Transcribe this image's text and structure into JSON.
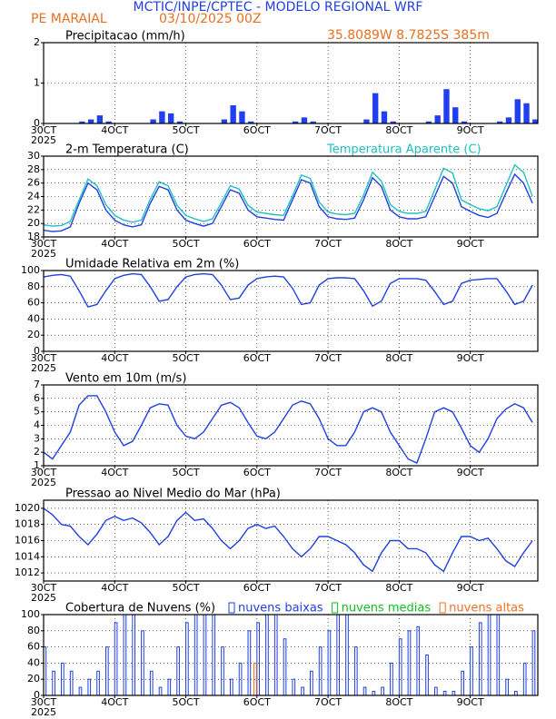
{
  "header": {
    "title": "MCTIC/INPE/CPTEC - MODELO REGIONAL WRF",
    "location": "PE MARAIAL",
    "date": "03/10/2025 00Z",
    "coords": "35.8089W 8.7825S 385m"
  },
  "time_axis": {
    "xlim": [
      3,
      9.95
    ],
    "year": "2025",
    "xticks": [
      {
        "value": 3,
        "label": "30CT"
      },
      {
        "value": 4,
        "label": "4OCT"
      },
      {
        "value": 5,
        "label": "5OCT"
      },
      {
        "value": 6,
        "label": "6OCT"
      },
      {
        "value": 7,
        "label": "7OCT"
      },
      {
        "value": 8,
        "label": "8OCT"
      },
      {
        "value": 9,
        "label": "9OCT"
      }
    ],
    "x": [
      3,
      3.125,
      3.25,
      3.375,
      3.5,
      3.625,
      3.75,
      3.875,
      4,
      4.125,
      4.25,
      4.375,
      4.5,
      4.625,
      4.75,
      4.875,
      5,
      5.125,
      5.25,
      5.375,
      5.5,
      5.625,
      5.75,
      5.875,
      6,
      6.125,
      6.25,
      6.375,
      6.5,
      6.625,
      6.75,
      6.875,
      7,
      7.125,
      7.25,
      7.375,
      7.5,
      7.625,
      7.75,
      7.875,
      8,
      8.125,
      8.25,
      8.375,
      8.5,
      8.625,
      8.75,
      8.875,
      9,
      9.125,
      9.25,
      9.375,
      9.5,
      9.625,
      9.75,
      9.875
    ]
  },
  "chart_data": [
    {
      "type": "bar",
      "title": "Precipitacao (mm/h)",
      "color": "#1f3ff0",
      "ylim": [
        0,
        2
      ],
      "yticks": [
        0,
        1,
        2
      ],
      "grid": true,
      "values": [
        0,
        0,
        0,
        0,
        0.05,
        0.1,
        0.2,
        0.05,
        0,
        0,
        0,
        0,
        0.1,
        0.3,
        0.25,
        0.05,
        0,
        0,
        0,
        0,
        0.1,
        0.45,
        0.3,
        0.05,
        0,
        0,
        0,
        0,
        0.05,
        0.15,
        0.05,
        0,
        0,
        0,
        0,
        0,
        0.1,
        0.75,
        0.3,
        0.05,
        0,
        0,
        0,
        0.05,
        0.2,
        0.85,
        0.4,
        0.05,
        0,
        0,
        0,
        0.05,
        0.15,
        0.6,
        0.5,
        0.1
      ]
    },
    {
      "type": "line",
      "ylim": [
        18,
        30
      ],
      "yticks": [
        18,
        20,
        22,
        24,
        26,
        28,
        30
      ],
      "grid": true,
      "series": [
        {
          "name": "2-m Temperatura (C)",
          "color": "#2040e0",
          "values": [
            19,
            18.8,
            18.9,
            19.5,
            23,
            26,
            25,
            22,
            20.5,
            19.8,
            19.5,
            19.8,
            23,
            25.5,
            25,
            22,
            20.5,
            20,
            19.6,
            20,
            22.5,
            25,
            24.5,
            22,
            21,
            20.8,
            20.6,
            20.5,
            23.5,
            26.5,
            26,
            22.5,
            21,
            20.7,
            20.6,
            20.8,
            23.5,
            26.8,
            25.5,
            22,
            21,
            20.7,
            20.7,
            21,
            24,
            27,
            26,
            22.5,
            21.8,
            21.2,
            20.9,
            21.5,
            24.5,
            27.3,
            26,
            23
          ]
        },
        {
          "name": "Temperatura Aparente (C)",
          "color": "#20c0c0",
          "values": [
            19.8,
            19.6,
            19.7,
            20.3,
            23.5,
            26.6,
            25.6,
            22.8,
            21.2,
            20.5,
            20.2,
            20.5,
            23.6,
            26.2,
            25.6,
            22.7,
            21.2,
            20.7,
            20.3,
            20.7,
            23.1,
            25.6,
            25.1,
            22.7,
            21.7,
            21.5,
            21.3,
            21.2,
            24.1,
            27.2,
            26.7,
            23.2,
            21.7,
            21.4,
            21.3,
            21.5,
            24.2,
            27.6,
            26.3,
            22.8,
            21.8,
            21.5,
            21.5,
            21.8,
            25,
            28.2,
            27.5,
            23.5,
            22.8,
            22.2,
            21.9,
            22.5,
            25.6,
            28.7,
            27.6,
            24
          ]
        }
      ]
    },
    {
      "type": "line",
      "title": "Umidade Relativa em 2m (%)",
      "ylim": [
        0,
        100
      ],
      "yticks": [
        0,
        20,
        40,
        60,
        80,
        100
      ],
      "grid": true,
      "series": [
        {
          "color": "#2040e0",
          "values": [
            92,
            94,
            95,
            93,
            75,
            55,
            58,
            75,
            90,
            94,
            96,
            95,
            80,
            62,
            64,
            80,
            92,
            95,
            96,
            95,
            82,
            64,
            66,
            82,
            90,
            92,
            93,
            92,
            78,
            58,
            60,
            82,
            90,
            91,
            91,
            90,
            75,
            56,
            62,
            84,
            90,
            90,
            90,
            88,
            74,
            58,
            62,
            84,
            88,
            89,
            90,
            90,
            75,
            58,
            62,
            82
          ]
        }
      ]
    },
    {
      "type": "line",
      "title": "Vento em 10m (m/s)",
      "ylim": [
        1,
        7
      ],
      "yticks": [
        1,
        2,
        3,
        4,
        5,
        6,
        7
      ],
      "grid": true,
      "series": [
        {
          "color": "#2040e0",
          "values": [
            2,
            1.5,
            2.5,
            3.5,
            5.5,
            6.2,
            6.2,
            5,
            3.5,
            2.5,
            2.8,
            4,
            5.3,
            5.6,
            5.5,
            4,
            3.2,
            3,
            3.5,
            4.5,
            5.5,
            5.7,
            5.3,
            4.2,
            3.2,
            3,
            3.5,
            4.5,
            5.5,
            5.8,
            5.6,
            4.5,
            3,
            2.5,
            2.5,
            3.5,
            5,
            5.3,
            5,
            3.5,
            2.5,
            1.5,
            1.2,
            3,
            5,
            5.3,
            5,
            3.8,
            2.5,
            2,
            3,
            4.5,
            5.2,
            5.6,
            5.3,
            4.2
          ]
        }
      ]
    },
    {
      "type": "line",
      "title": "Pressao ao Nivel Medio do Mar (hPa)",
      "ylim": [
        1011,
        1021
      ],
      "yticks": [
        1012,
        1014,
        1016,
        1018,
        1020
      ],
      "grid": true,
      "series": [
        {
          "color": "#2040e0",
          "values": [
            1020,
            1019.2,
            1018,
            1017.8,
            1016.5,
            1015.5,
            1016.8,
            1018.5,
            1019,
            1018.5,
            1018.8,
            1018.2,
            1017,
            1015.5,
            1016.5,
            1018.5,
            1019.5,
            1018.5,
            1018.7,
            1017.5,
            1016,
            1015,
            1016,
            1017.5,
            1018,
            1017.5,
            1017.8,
            1016.5,
            1015,
            1014,
            1015,
            1016.5,
            1016.5,
            1016,
            1015.5,
            1014.5,
            1013,
            1012.2,
            1014.5,
            1016,
            1016,
            1015,
            1015,
            1014.5,
            1013,
            1012.2,
            1014.5,
            1016.5,
            1016.5,
            1016,
            1016.3,
            1015,
            1013.5,
            1012.8,
            1014.5,
            1016
          ]
        }
      ]
    },
    {
      "type": "bar",
      "title": "Cobertura de Nuvens (%)",
      "ylim": [
        0,
        100
      ],
      "yticks": [
        0,
        20,
        40,
        60,
        80,
        100
      ],
      "grid": true,
      "legend": true,
      "series": [
        {
          "name": "nuvens baixas",
          "color": "#2040e0",
          "values": [
            60,
            30,
            40,
            30,
            10,
            20,
            30,
            60,
            90,
            100,
            100,
            80,
            30,
            10,
            20,
            60,
            90,
            100,
            100,
            100,
            60,
            20,
            40,
            80,
            90,
            100,
            100,
            70,
            20,
            10,
            30,
            60,
            80,
            100,
            100,
            60,
            10,
            5,
            10,
            40,
            70,
            80,
            85,
            50,
            10,
            5,
            5,
            30,
            60,
            90,
            100,
            100,
            20,
            5,
            40,
            80
          ]
        },
        {
          "name": "nuvens medias",
          "color": "#10c020",
          "values": [
            0,
            0,
            0,
            0,
            0,
            0,
            0,
            0,
            0,
            0,
            0,
            0,
            0,
            0,
            0,
            0,
            0,
            0,
            0,
            0,
            0,
            0,
            0,
            0,
            0,
            0,
            0,
            0,
            0,
            0,
            0,
            0,
            0,
            0,
            0,
            0,
            0,
            0,
            0,
            0,
            0,
            0,
            0,
            0,
            0,
            0,
            0,
            0,
            0,
            0,
            0,
            0,
            0,
            0,
            0,
            0
          ]
        },
        {
          "name": "nuvens altas",
          "color": "#f07020",
          "values": [
            0,
            0,
            0,
            0,
            0,
            0,
            0,
            0,
            0,
            0,
            0,
            0,
            0,
            0,
            0,
            0,
            0,
            0,
            0,
            0,
            0,
            0,
            0,
            40,
            0,
            0,
            0,
            0,
            0,
            0,
            0,
            0,
            0,
            0,
            0,
            0,
            0,
            0,
            0,
            0,
            0,
            0,
            0,
            0,
            0,
            0,
            0,
            0,
            0,
            0,
            0,
            0,
            0,
            0,
            0,
            0
          ]
        }
      ]
    }
  ]
}
